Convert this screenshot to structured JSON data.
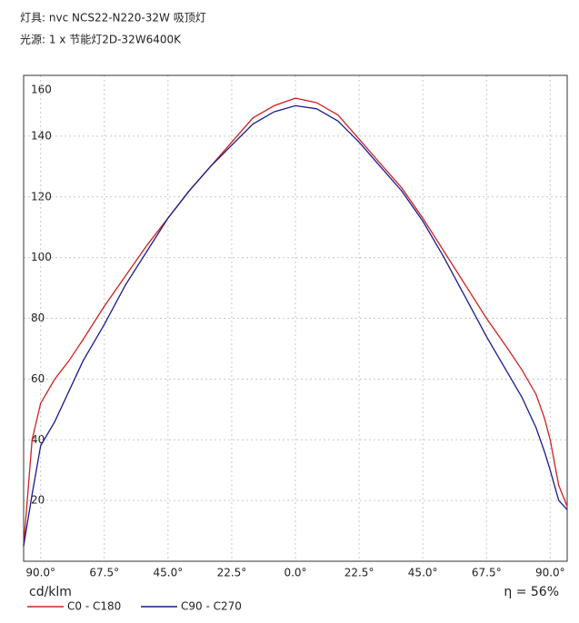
{
  "chart_data": {
    "type": "line",
    "header": [
      "灯具: nvc NCS22-N220-32W 吸顶灯",
      "光源: 1 x 节能灯2D-32W6400K"
    ],
    "ylabel": "cd/klm",
    "annotation": "η = 56%",
    "x": [
      -96,
      -93,
      -90,
      -85,
      -80,
      -75,
      -67.5,
      -60,
      -52.5,
      -45,
      -37.5,
      -30,
      -22.5,
      -15,
      -7.5,
      0,
      7.5,
      15,
      22.5,
      30,
      37.5,
      45,
      52.5,
      60,
      67.5,
      75,
      80,
      85,
      88,
      90,
      93,
      96
    ],
    "series": [
      {
        "name": "C0 - C180",
        "color": "#d02020",
        "values": [
          5,
          40,
          52,
          60,
          66,
          73,
          84,
          94,
          104,
          113,
          122,
          130,
          138,
          146,
          150,
          152.5,
          151,
          147,
          139,
          131,
          123,
          113,
          102,
          91,
          80,
          70,
          63,
          55,
          47,
          40,
          25,
          18
        ]
      },
      {
        "name": "C90 - C270",
        "color": "#1a1a90",
        "values": [
          5,
          22,
          38,
          46,
          56,
          66,
          78,
          91,
          102,
          113,
          122,
          130,
          137,
          144,
          148,
          150,
          149,
          145,
          138,
          130,
          122,
          112,
          100,
          87,
          74,
          62,
          54,
          44,
          36,
          30,
          20,
          17
        ]
      }
    ],
    "xlim": [
      -96,
      96
    ],
    "ylim": [
      0,
      160
    ],
    "xticks": [
      {
        "value": -90,
        "label": "90.0°"
      },
      {
        "value": -67.5,
        "label": "67.5°"
      },
      {
        "value": -45,
        "label": "45.0°"
      },
      {
        "value": -22.5,
        "label": "22.5°"
      },
      {
        "value": 0,
        "label": "0.0°"
      },
      {
        "value": 22.5,
        "label": "22.5°"
      },
      {
        "value": 45,
        "label": "45.0°"
      },
      {
        "value": 67.5,
        "label": "67.5°"
      },
      {
        "value": 90,
        "label": "90.0°"
      }
    ],
    "yticks": [
      20,
      40,
      60,
      80,
      100,
      120,
      140,
      160
    ],
    "grid": true
  }
}
